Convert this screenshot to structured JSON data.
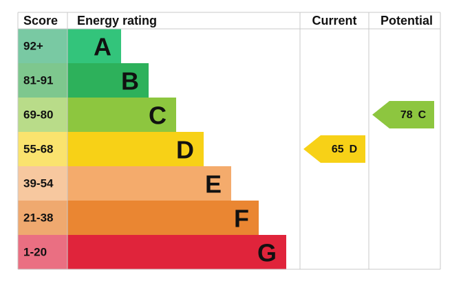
{
  "chart_data": {
    "type": "epc",
    "headers": [
      "Score",
      "Energy rating",
      "Current",
      "Potential"
    ],
    "bands": [
      {
        "score": "92+",
        "rating": "A",
        "color": "#33c47b",
        "score_color": "#79c9a3"
      },
      {
        "score": "81-91",
        "rating": "B",
        "color": "#2db15b",
        "score_color": "#7ec78e"
      },
      {
        "score": "69-80",
        "rating": "C",
        "color": "#8dc63f",
        "score_color": "#b9dc89"
      },
      {
        "score": "55-68",
        "rating": "D",
        "color": "#f7d117",
        "score_color": "#fae36e"
      },
      {
        "score": "39-54",
        "rating": "E",
        "color": "#f4ab6c",
        "score_color": "#f7c89f"
      },
      {
        "score": "21-38",
        "rating": "F",
        "color": "#ea8632",
        "score_color": "#efa96f"
      },
      {
        "score": "1-20",
        "rating": "G",
        "color": "#e0243b",
        "score_color": "#ea6f82"
      }
    ],
    "current": {
      "value": 65,
      "rating": "D"
    },
    "potential": {
      "value": 78,
      "rating": "C"
    }
  }
}
